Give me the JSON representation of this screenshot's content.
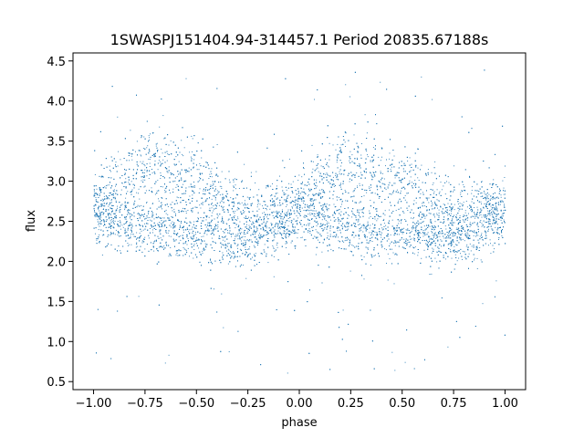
{
  "chart_data": {
    "type": "scatter",
    "title": "1SWASPJ151404.94-314457.1 Period 20835.67188s",
    "xlabel": "phase",
    "ylabel": "flux",
    "xlim": [
      -1.1,
      1.1
    ],
    "ylim": [
      0.4,
      4.6
    ],
    "x_ticks": [
      "−1.00",
      "−0.75",
      "−0.50",
      "−0.25",
      "0.00",
      "0.25",
      "0.50",
      "0.75",
      "1.00"
    ],
    "y_ticks": [
      "0.5",
      "1.0",
      "1.5",
      "2.0",
      "2.5",
      "3.0",
      "3.5",
      "4.0",
      "4.5"
    ],
    "grid": false,
    "legend": "none",
    "point_color": "#1f77b4",
    "series": [
      {
        "profile": [
          {
            "phase": -1.0,
            "flux_low_band": 2.55,
            "flux_high_band": 2.75
          },
          {
            "phase": -0.75,
            "flux_low_band": 2.45,
            "flux_high_band": 3.2
          },
          {
            "phase": -0.5,
            "flux_low_band": 2.35,
            "flux_high_band": 3.0
          },
          {
            "phase": -0.25,
            "flux_low_band": 2.3,
            "flux_high_band": 2.6
          },
          {
            "phase": 0.0,
            "flux_low_band": 2.55,
            "flux_high_band": 2.75
          },
          {
            "phase": 0.25,
            "flux_low_band": 2.45,
            "flux_high_band": 3.2
          },
          {
            "phase": 0.5,
            "flux_low_band": 2.35,
            "flux_high_band": 3.0
          },
          {
            "phase": 0.75,
            "flux_low_band": 2.3,
            "flux_high_band": 2.6
          },
          {
            "phase": 1.0,
            "flux_low_band": 2.55,
            "flux_high_band": 2.75
          }
        ]
      }
    ]
  }
}
